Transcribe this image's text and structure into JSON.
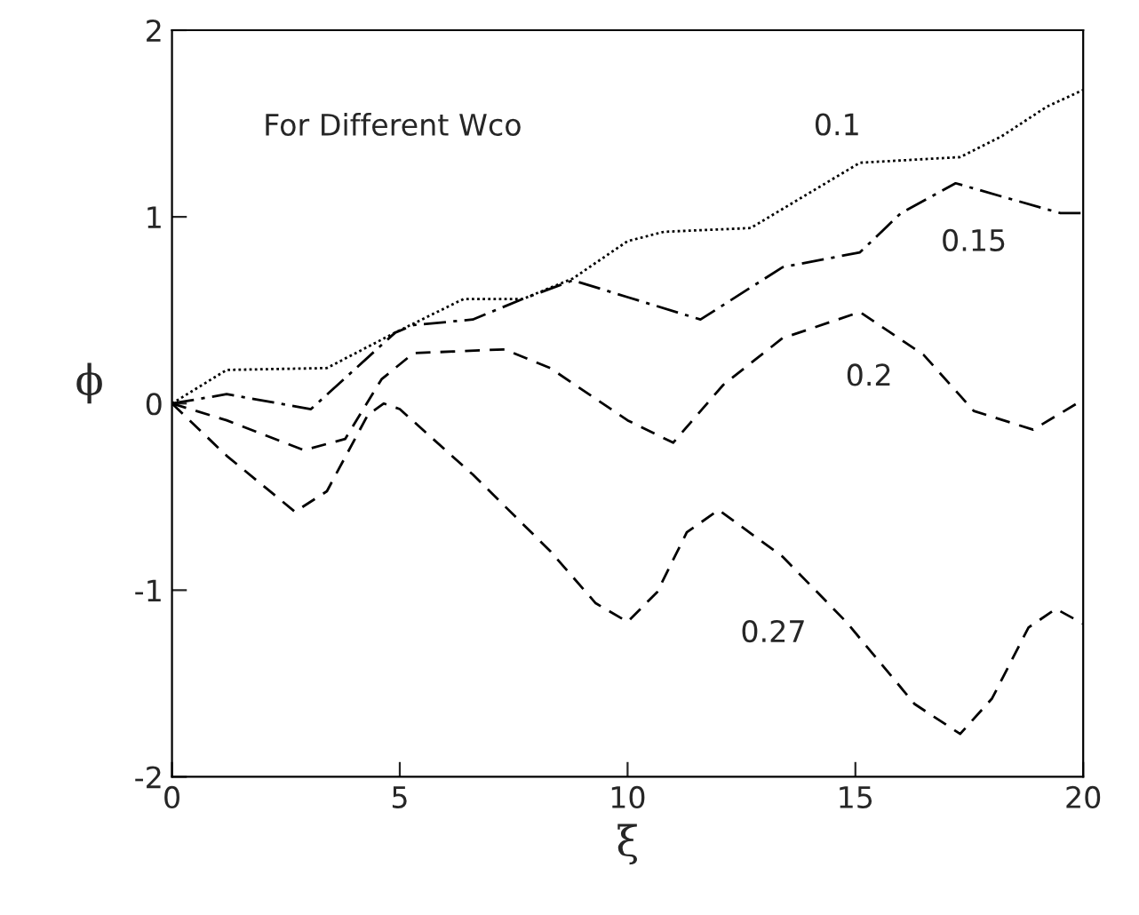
{
  "chart_data": {
    "type": "line",
    "xlabel": "ξ",
    "ylabel": "ϕ",
    "xlim": [
      0,
      20
    ],
    "xticks": [
      0,
      5,
      10,
      15,
      20
    ],
    "ylim": [
      -2,
      2
    ],
    "yticks": [
      -2,
      -1,
      0,
      1,
      2
    ],
    "grid": false,
    "legend": false,
    "series": [
      {
        "name": "0.1",
        "color": "#000000",
        "line_style": "dotted",
        "x": [
          0,
          1.2,
          3.4,
          4.9,
          6.4,
          7.7,
          8.8,
          10.0,
          10.8,
          12.7,
          15.1,
          17.3,
          18.2,
          19.2,
          20
        ],
        "values": [
          0,
          0.18,
          0.19,
          0.38,
          0.56,
          0.56,
          0.67,
          0.87,
          0.92,
          0.94,
          1.29,
          1.32,
          1.43,
          1.59,
          1.68
        ]
      },
      {
        "name": "0.15",
        "color": "#000000",
        "line_style": "dashdot",
        "x": [
          0,
          1.2,
          3.05,
          4.9,
          5.3,
          6.6,
          7.7,
          8.8,
          10.0,
          11.6,
          13.4,
          15.1,
          16.0,
          17.2,
          18.2,
          19.5,
          20
        ],
        "values": [
          0,
          0.05,
          -0.03,
          0.38,
          0.42,
          0.45,
          0.56,
          0.66,
          0.57,
          0.45,
          0.73,
          0.81,
          1.02,
          1.18,
          1.11,
          1.02,
          1.02
        ]
      },
      {
        "name": "0.2",
        "color": "#000000",
        "line_style": "dashed",
        "x": [
          0,
          1.2,
          2.9,
          3.8,
          4.6,
          5.3,
          7.3,
          8.3,
          10.0,
          11.0,
          12.1,
          13.4,
          15.1,
          16.5,
          17.6,
          18.9,
          20
        ],
        "values": [
          0,
          -0.09,
          -0.25,
          -0.19,
          0.13,
          0.27,
          0.29,
          0.19,
          -0.09,
          -0.21,
          0.1,
          0.35,
          0.49,
          0.26,
          -0.04,
          -0.14,
          0.02
        ]
      },
      {
        "name": "0.27",
        "color": "#000000",
        "line_style": "dashed",
        "x": [
          0,
          1.2,
          2.7,
          3.4,
          4.3,
          4.65,
          5.0,
          6.6,
          8.3,
          9.3,
          10.0,
          10.65,
          11.3,
          12.0,
          13.4,
          14.8,
          16.3,
          17.3,
          18.0,
          18.8,
          19.4,
          20
        ],
        "values": [
          0,
          -0.28,
          -0.58,
          -0.47,
          -0.06,
          0.0,
          -0.03,
          -0.38,
          -0.79,
          -1.07,
          -1.17,
          -1.01,
          -0.69,
          -0.57,
          -0.82,
          -1.17,
          -1.61,
          -1.77,
          -1.58,
          -1.2,
          -1.1,
          -1.18
        ]
      }
    ],
    "annotations": [
      "For Different Wco"
    ]
  }
}
